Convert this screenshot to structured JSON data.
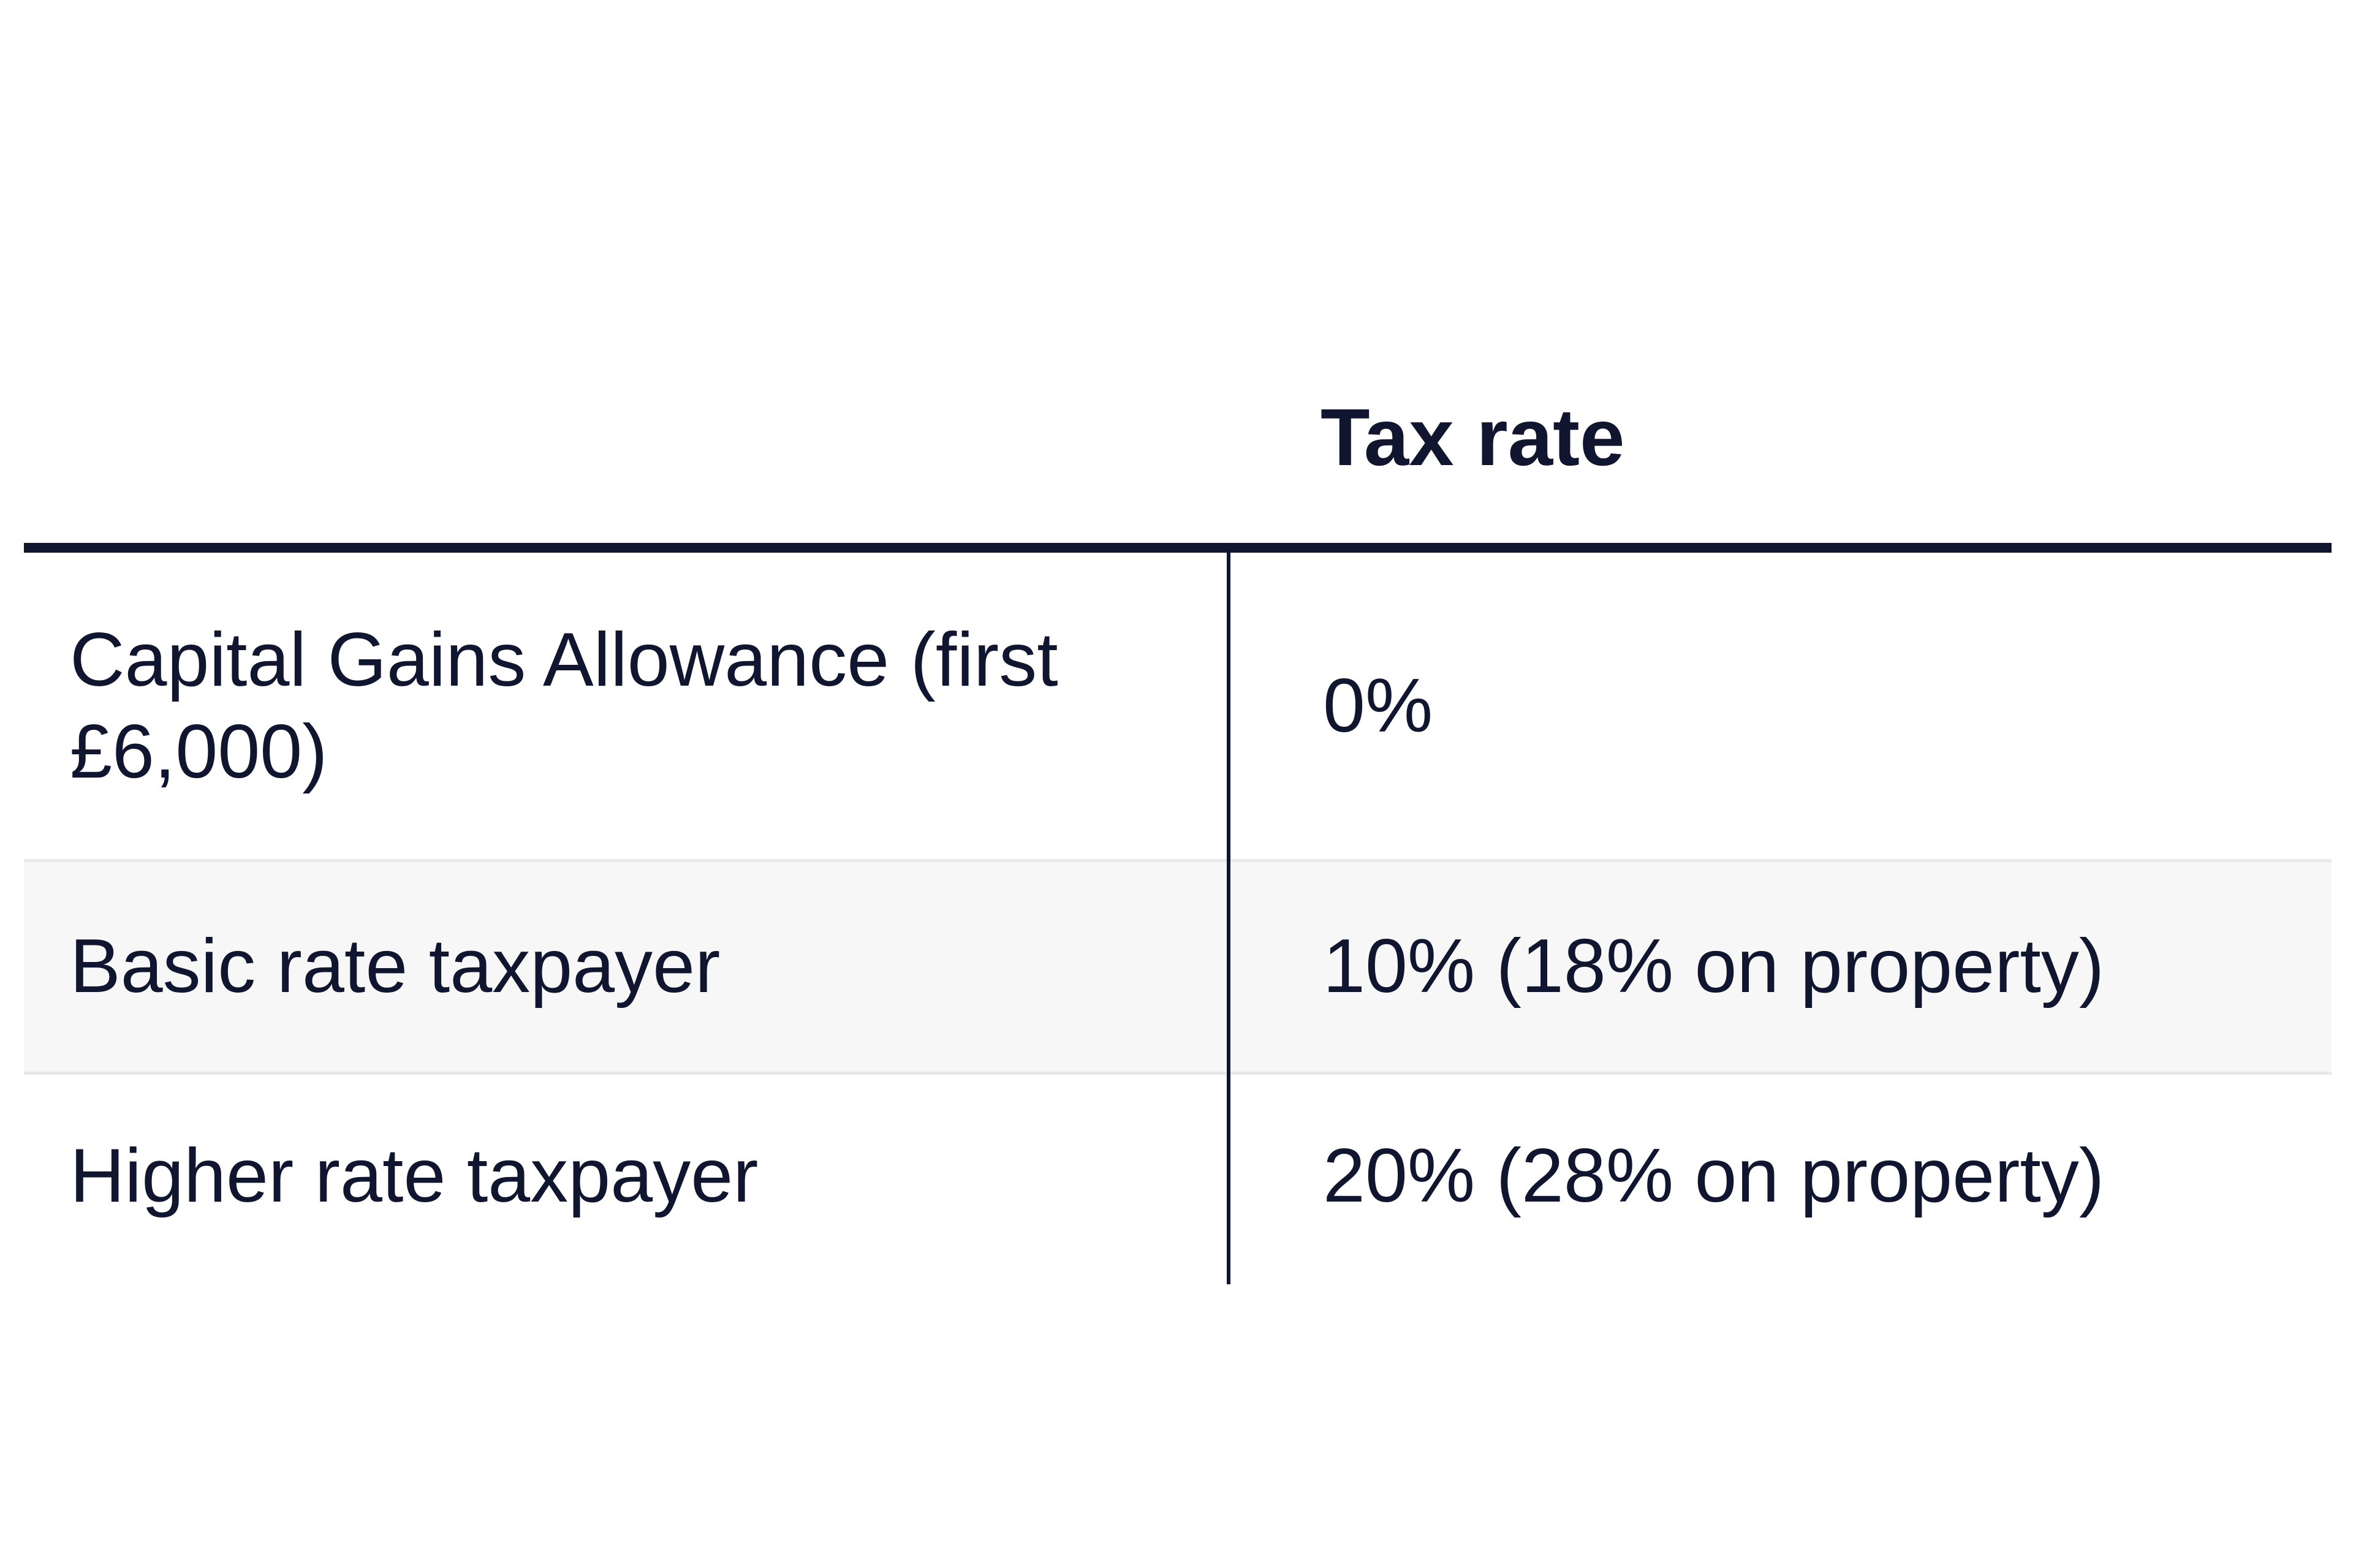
{
  "table": {
    "header": {
      "label_col": "",
      "value_col": "Tax rate"
    },
    "rows": [
      {
        "label": "Capital Gains Allowance (first £6,000)",
        "value": "0%"
      },
      {
        "label": "Basic rate taxpayer",
        "value": "10% (18% on property)"
      },
      {
        "label": "Higher rate taxpayer",
        "value": "20% (28% on property)"
      }
    ]
  },
  "colors": {
    "text": "#101530",
    "rule": "#101530",
    "stripe": "#f7f7f7"
  }
}
